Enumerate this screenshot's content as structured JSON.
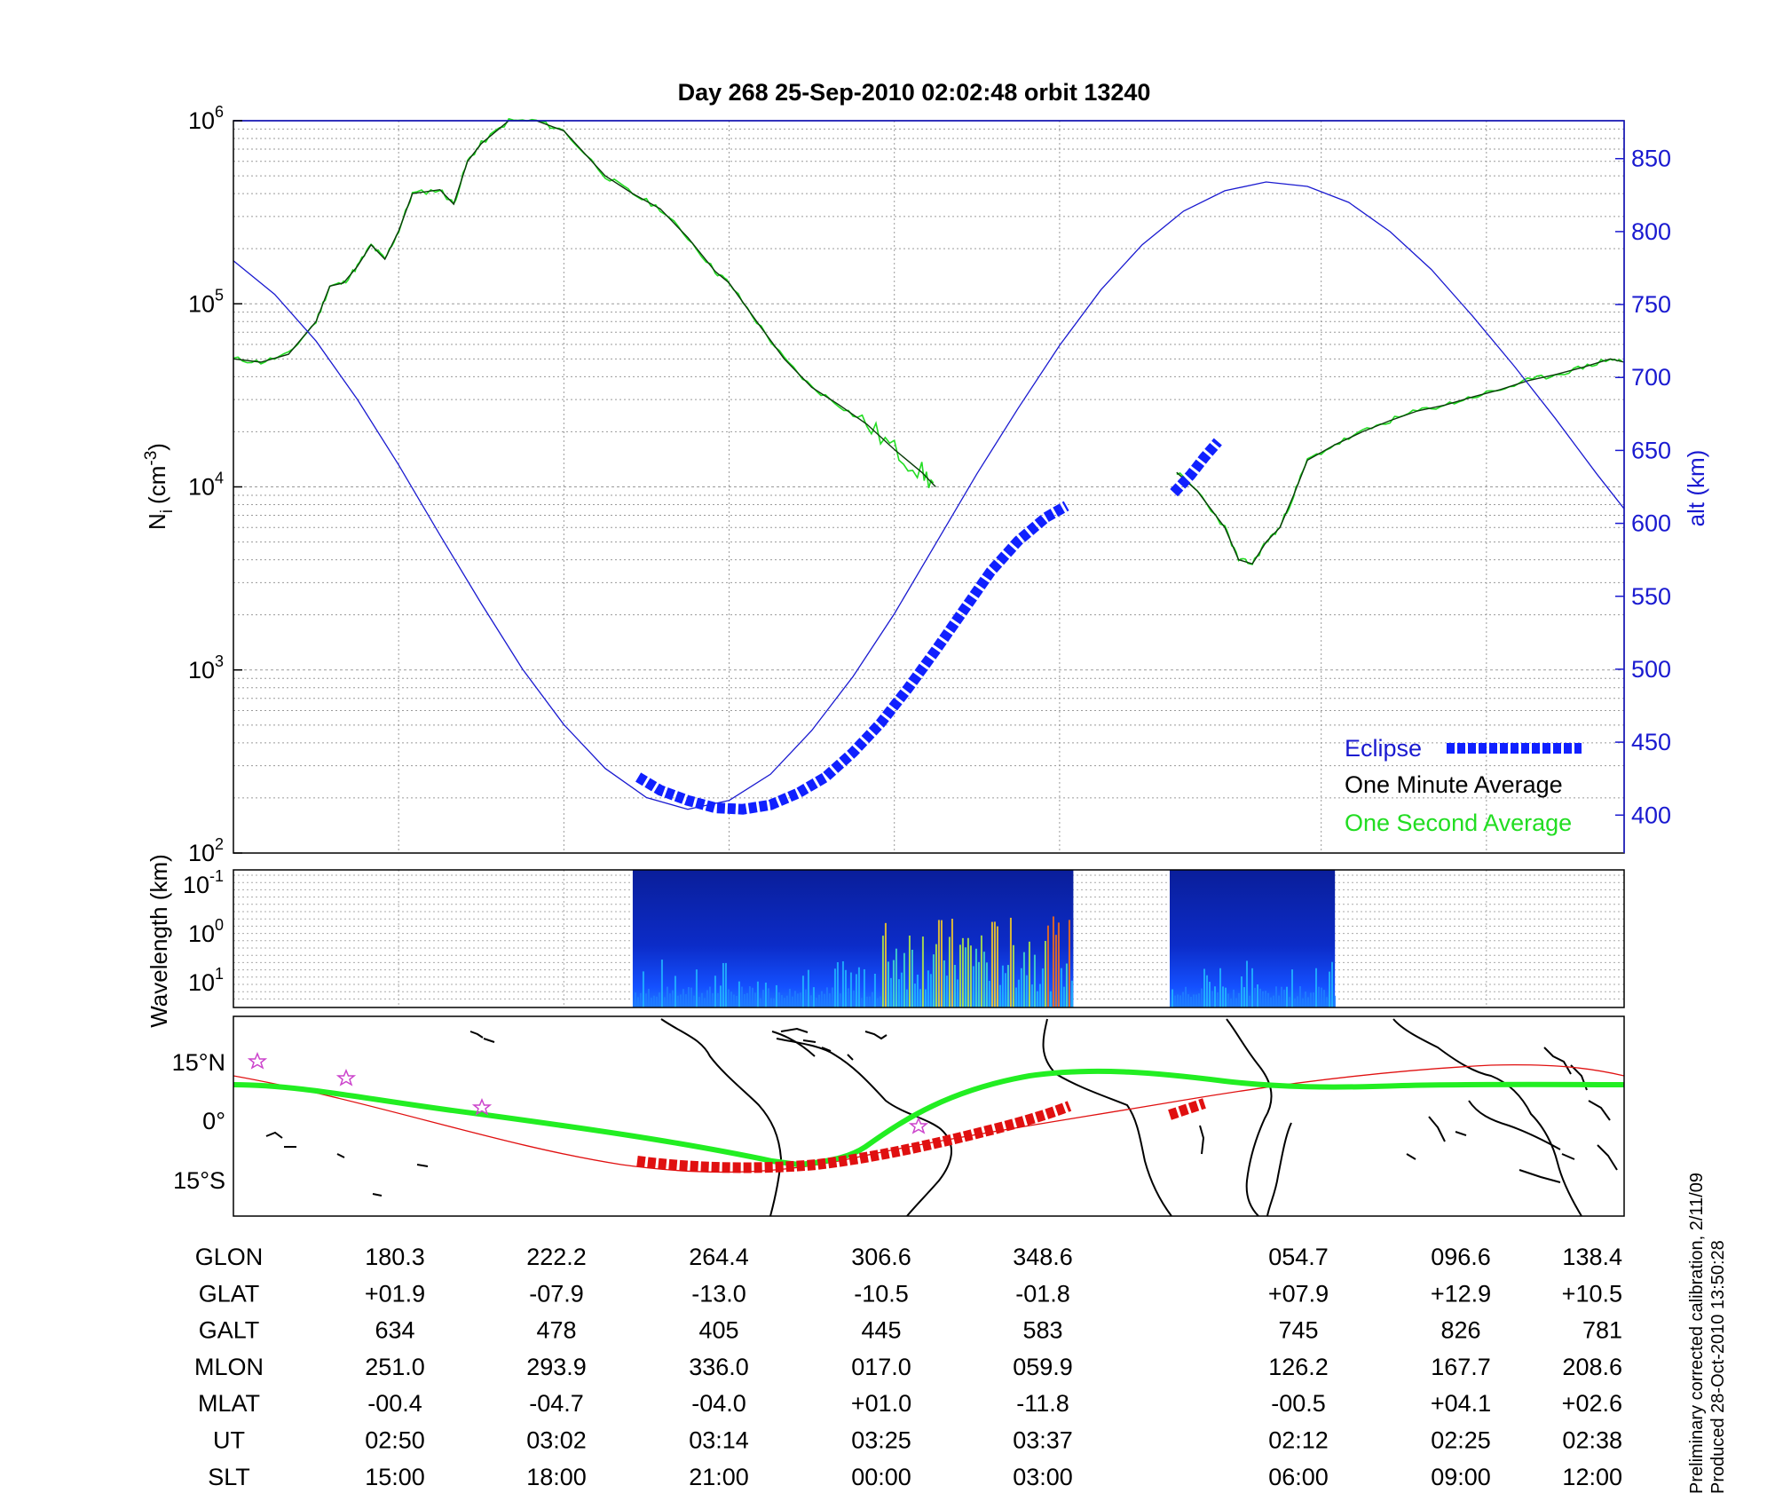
{
  "title": "Day 268  25-Sep-2010 02:02:48   orbit 13240",
  "colors": {
    "altitude": "#1a1ad0",
    "one_minute": "#0a3a0a",
    "one_second": "#22dd22",
    "eclipse": "#1020ff",
    "track_red": "#e01010",
    "track_green": "#22ee22",
    "star": "#cc44cc"
  },
  "chart_data": [
    {
      "type": "line",
      "ylabel_left": "N",
      "ylabel_left_sub": "i",
      "ylabel_left_unit": "(cm",
      "ylabel_left_sup": "-3",
      "ylabel_left_close": ")",
      "ylabel_right": "alt (km)",
      "y_left_scale": "log",
      "ylim_left": [
        100,
        1000000
      ],
      "y_left_ticks": [
        {
          "base": "10",
          "exp": "2",
          "value": 100
        },
        {
          "base": "10",
          "exp": "3",
          "value": 1000
        },
        {
          "base": "10",
          "exp": "4",
          "value": 10000
        },
        {
          "base": "10",
          "exp": "5",
          "value": 100000
        },
        {
          "base": "10",
          "exp": "6",
          "value": 1000000
        }
      ],
      "ylim_right": [
        374,
        876
      ],
      "y_right_ticks": [
        "400",
        "450",
        "500",
        "550",
        "600",
        "650",
        "700",
        "750",
        "800",
        "850"
      ],
      "x_unit": "minutes from plot start",
      "xlim": [
        0,
        101
      ],
      "grid": true,
      "legend": {
        "placement": "bottom-right",
        "entries": [
          {
            "label": "Eclipse",
            "color": "#1020ff"
          },
          {
            "label": "One Minute Average",
            "color": "#000000"
          },
          {
            "label": "One Second Average",
            "color": "#22dd22"
          }
        ]
      },
      "series": [
        {
          "name": "One Minute Average",
          "x": [
            0,
            2,
            4,
            6,
            7,
            8,
            9,
            10,
            11,
            12,
            13,
            15,
            16,
            17,
            18,
            20,
            22,
            24,
            27,
            29,
            31,
            33,
            35,
            36,
            38,
            40,
            42,
            44,
            46,
            48,
            50,
            51,
            52,
            53,
            54,
            55,
            56,
            57,
            58,
            59,
            60,
            61,
            61.5
          ],
          "y": [
            50000,
            48000,
            53000,
            80000,
            125000,
            130000,
            160000,
            210000,
            175000,
            250000,
            400000,
            420000,
            350000,
            600000,
            750000,
            1000000,
            1000000,
            880000,
            500000,
            400000,
            330000,
            230000,
            150000,
            130000,
            80000,
            50000,
            35000,
            28000,
            22000,
            16000,
            12000,
            10000,
            null,
            null,
            null,
            null,
            null,
            null,
            null,
            null,
            null,
            null,
            null
          ]
        },
        {
          "name": "One Minute Average (second segment)",
          "x": [
            68.5,
            70,
            72,
            73,
            74,
            75,
            76,
            77,
            78,
            80,
            82,
            84,
            86,
            88,
            90,
            92,
            94,
            96,
            98,
            100,
            101
          ],
          "y": [
            12000,
            9500,
            6000,
            4000,
            3800,
            5000,
            6000,
            9000,
            14000,
            17000,
            20000,
            23000,
            26000,
            28000,
            31000,
            34000,
            38000,
            41000,
            45000,
            50000,
            48000
          ]
        },
        {
          "name": "alt (km)",
          "x": [
            0,
            3,
            6,
            9,
            12,
            15,
            18,
            21,
            24,
            27,
            30,
            33,
            36,
            39,
            42,
            45,
            48,
            51,
            54,
            57,
            60,
            63,
            66,
            69,
            72,
            75,
            78,
            81,
            84,
            87,
            90,
            93,
            96,
            99,
            101
          ],
          "y": [
            780,
            757,
            725,
            685,
            640,
            592,
            545,
            500,
            462,
            432,
            412,
            404,
            410,
            428,
            458,
            495,
            538,
            586,
            634,
            679,
            722,
            760,
            791,
            814,
            828,
            834,
            831,
            820,
            800,
            774,
            742,
            708,
            672,
            634,
            610
          ]
        }
      ],
      "eclipse": [
        {
          "x": [
            29.4,
            31,
            33,
            35,
            37,
            39,
            41,
            43,
            45,
            47,
            49,
            51,
            53,
            55,
            57,
            59,
            60.5
          ],
          "y": [
            426,
            417,
            410,
            405,
            404,
            407,
            415,
            426,
            443,
            463,
            487,
            513,
            540,
            567,
            588,
            604,
            612
          ]
        },
        {
          "x": [
            68.3,
            69.5,
            70.5,
            71.5
          ],
          "y": [
            621,
            633,
            645,
            656
          ]
        }
      ]
    },
    {
      "type": "heatmap",
      "ylabel": "Wavelength (km)",
      "y_scale": "log",
      "y_ticks": [
        {
          "base": "10",
          "exp": "-1"
        },
        {
          "base": "10",
          "exp": "0"
        },
        {
          "base": "10",
          "exp": "1"
        }
      ],
      "data_windows_minutes": [
        [
          29,
          61
        ],
        [
          68,
          80
        ]
      ]
    },
    {
      "type": "map",
      "y_ticks": [
        "15°N",
        "0°",
        "15°S"
      ],
      "tracks": [
        "magnetic equator (red)",
        "satellite ground track (green)",
        "eclipse portion (red dashes)"
      ]
    },
    {
      "type": "table",
      "rows": [
        {
          "label": "GLON",
          "values": [
            "180.3",
            "222.2",
            "264.4",
            "306.6",
            "348.6",
            "054.7",
            "096.6",
            "138.4"
          ]
        },
        {
          "label": "GLAT",
          "values": [
            "+01.9",
            "-07.9",
            "-13.0",
            "-10.5",
            "-01.8",
            "+07.9",
            "+12.9",
            "+10.5"
          ]
        },
        {
          "label": "GALT",
          "values": [
            "634",
            "478",
            "405",
            "445",
            "583",
            "745",
            "826",
            "781"
          ]
        },
        {
          "label": "MLON",
          "values": [
            "251.0",
            "293.9",
            "336.0",
            "017.0",
            "059.9",
            "126.2",
            "167.7",
            "208.6"
          ]
        },
        {
          "label": "MLAT",
          "values": [
            "-00.4",
            "-04.7",
            "-04.0",
            "+01.0",
            "-11.8",
            "-00.5",
            "+04.1",
            "+02.6"
          ]
        },
        {
          "label": "UT",
          "values": [
            "02:50",
            "03:02",
            "03:14",
            "03:25",
            "03:37",
            "02:12",
            "02:25",
            "02:38"
          ]
        },
        {
          "label": "SLT",
          "values": [
            "15:00",
            "18:00",
            "21:00",
            "00:00",
            "03:00",
            "06:00",
            "09:00",
            "12:00"
          ]
        }
      ],
      "column_minutes": [
        12,
        24,
        36,
        48,
        60,
        79,
        91,
        103
      ]
    }
  ],
  "footer": {
    "line1": "Preliminary corrected calibration, 2/11/09",
    "line2": "Produced 28-Oct-2010 13:50:28"
  }
}
